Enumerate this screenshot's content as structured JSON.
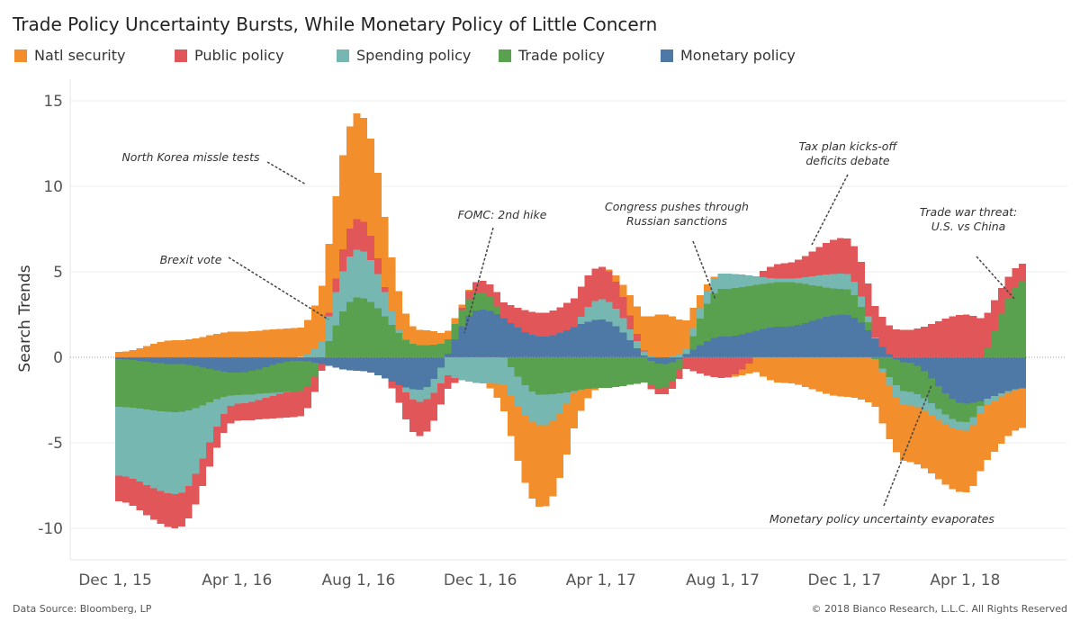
{
  "chart_data": {
    "type": "area",
    "title": "Trade Policy Uncertainty Bursts, While Monetary Policy of Little Concern",
    "ylabel": "Search Trends",
    "xlabel": "",
    "ylim": [
      -12,
      16
    ],
    "yticks": [
      15,
      10,
      5,
      0,
      -5,
      -10
    ],
    "xticks": [
      "Dec 1, 15",
      "Apr 1, 16",
      "Aug 1, 16",
      "Dec 1, 16",
      "Apr 1, 17",
      "Aug 1, 17",
      "Dec 1, 17",
      "Apr 1, 18"
    ],
    "x_range": [
      "Dec 1, 15",
      "Jun 1, 18"
    ],
    "legend_position": "top",
    "grid": "horizontal",
    "stacking": "diverging",
    "series": [
      {
        "name": "Monetary policy",
        "color": "#4e79a7",
        "x": [
          "Dec 1, 15",
          "Feb 1, 16",
          "Apr 1, 16",
          "Jun 1, 16",
          "Aug 1, 16",
          "Oct 1, 16",
          "Dec 1, 16",
          "Feb 1, 17",
          "Apr 1, 17",
          "Jun 1, 17",
          "Aug 1, 17",
          "Oct 1, 17",
          "Dec 1, 17",
          "Feb 1, 18",
          "Apr 1, 18",
          "Jun 1, 18"
        ],
        "values": [
          -0.1,
          -0.4,
          -0.9,
          -0.2,
          -0.8,
          -1.9,
          2.8,
          1.2,
          2.2,
          -0.4,
          1.2,
          1.8,
          2.5,
          -0.3,
          -2.7,
          -1.8
        ]
      },
      {
        "name": "Trade policy",
        "color": "#59a14f",
        "x": [
          "Dec 1, 15",
          "Feb 1, 16",
          "Apr 1, 16",
          "Jun 1, 16",
          "Aug 1, 16",
          "Oct 1, 16",
          "Dec 1, 16",
          "Feb 1, 17",
          "Apr 1, 17",
          "Jun 1, 17",
          "Aug 1, 17",
          "Oct 1, 17",
          "Dec 1, 17",
          "Feb 1, 18",
          "Apr 1, 18",
          "Jun 1, 18"
        ],
        "values": [
          -2.8,
          -2.8,
          -1.3,
          -1.8,
          3.5,
          0.7,
          1.0,
          -2.2,
          -1.8,
          -1.4,
          2.8,
          2.6,
          1.5,
          -1.7,
          -1.1,
          4.5
        ]
      },
      {
        "name": "Spending policy",
        "color": "#76b7b2",
        "x": [
          "Dec 1, 15",
          "Feb 1, 16",
          "Apr 1, 16",
          "Jun 1, 16",
          "Aug 1, 16",
          "Oct 1, 16",
          "Dec 1, 16",
          "Feb 1, 17",
          "Apr 1, 17",
          "Jun 1, 17",
          "Aug 1, 17",
          "Oct 1, 17",
          "Dec 1, 17",
          "Feb 1, 18",
          "Apr 1, 18",
          "Jun 1, 18"
        ],
        "values": [
          -4.0,
          -4.8,
          -0.5,
          0,
          2.8,
          -0.7,
          -1.5,
          -1.8,
          1.2,
          0,
          0.9,
          0.2,
          0.9,
          -0.8,
          -0.5,
          0
        ]
      },
      {
        "name": "Public policy",
        "color": "#e15759",
        "x": [
          "Dec 1, 15",
          "Feb 1, 16",
          "Apr 1, 16",
          "Jun 1, 16",
          "Aug 1, 16",
          "Oct 1, 16",
          "Dec 1, 16",
          "Feb 1, 17",
          "Apr 1, 17",
          "Jun 1, 17",
          "Aug 1, 17",
          "Oct 1, 17",
          "Dec 1, 17",
          "Feb 1, 18",
          "Apr 1, 18",
          "Jun 1, 18"
        ],
        "values": [
          -1.5,
          -2.0,
          -1.0,
          -1.5,
          1.8,
          -2.0,
          0.7,
          1.4,
          1.9,
          -0.4,
          -1.2,
          0.9,
          2.1,
          1.6,
          2.5,
          1.0
        ]
      },
      {
        "name": "Natl security",
        "color": "#f28e2b",
        "x": [
          "Dec 1, 15",
          "Feb 1, 16",
          "Apr 1, 16",
          "Jun 1, 16",
          "Aug 1, 16",
          "Oct 1, 16",
          "Dec 1, 16",
          "Feb 1, 17",
          "Apr 1, 17",
          "Jun 1, 17",
          "Aug 1, 17",
          "Oct 1, 17",
          "Dec 1, 17",
          "Feb 1, 18",
          "Apr 1, 18",
          "Jun 1, 18"
        ],
        "values": [
          0.3,
          1.0,
          1.5,
          1.7,
          6.2,
          0.9,
          0,
          -4.8,
          0,
          2.5,
          0,
          -1.5,
          -2.3,
          -3.3,
          -3.6,
          -2.3
        ]
      }
    ],
    "annotations": [
      {
        "text": "North Korea missle tests"
      },
      {
        "text": "Brexit vote"
      },
      {
        "text": "FOMC: 2nd hike"
      },
      {
        "text": "Congress pushes through Russian sanctions"
      },
      {
        "text": "Tax plan kicks-off deficits debate"
      },
      {
        "text": "Trade war threat: U.S. vs China"
      },
      {
        "text": "Monetary policy uncertainty evaporates"
      }
    ]
  },
  "legend": {
    "natl_security": "Natl security",
    "public_policy": "Public policy",
    "spending_policy": "Spending policy",
    "trade_policy": "Trade policy",
    "monetary_policy": "Monetary policy"
  },
  "footer": {
    "source": "Data Source: Bloomberg, LP",
    "copyright": "© 2018 Bianco Research, L.L.C. All Rights Reserved"
  }
}
